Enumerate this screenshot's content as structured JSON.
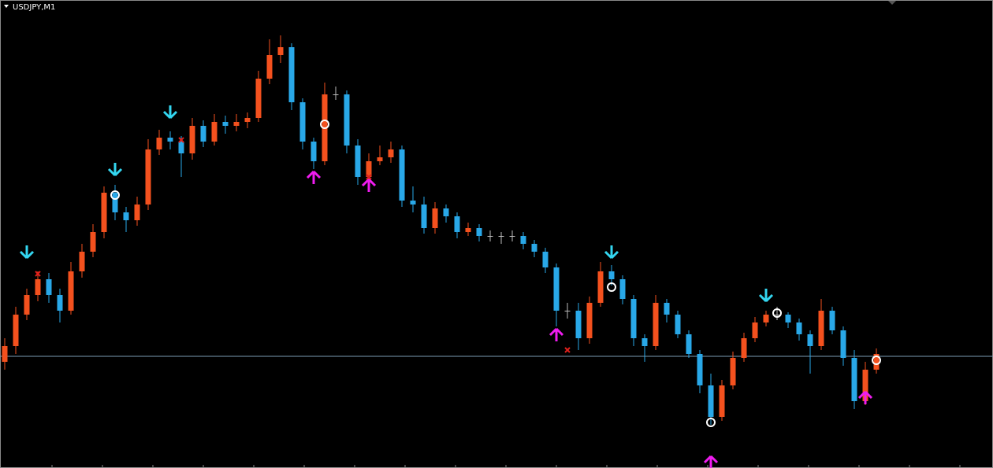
{
  "chart_data": {
    "type": "candlestick",
    "title": "USDJPY,M1",
    "ylim": [
      0,
      595
    ],
    "up_color": "#f4511e",
    "down_color": "#29a8e8",
    "open": [
      135,
      155,
      195,
      220,
      240,
      220,
      200,
      250,
      275,
      300,
      350,
      325,
      315,
      335,
      405,
      420,
      415,
      400,
      435,
      415,
      440,
      435,
      440,
      445,
      495,
      525,
      535,
      465,
      415,
      390,
      475,
      475,
      410,
      370,
      390,
      395,
      405,
      340,
      335,
      305,
      330,
      320,
      300,
      305,
      295,
      295,
      295,
      295,
      285,
      275,
      255,
      200,
      200,
      165,
      210,
      250,
      240,
      215,
      165,
      155,
      210,
      195,
      170,
      145,
      105,
      65,
      105,
      140,
      165,
      185,
      195,
      195,
      185,
      170,
      155,
      200,
      175,
      140,
      85,
      125
    ],
    "high": [
      165,
      205,
      228,
      250,
      248,
      228,
      262,
      285,
      310,
      358,
      360,
      332,
      345,
      418,
      430,
      428,
      422,
      445,
      442,
      450,
      448,
      450,
      452,
      505,
      545,
      550,
      540,
      470,
      420,
      490,
      485,
      480,
      418,
      400,
      410,
      415,
      410,
      358,
      345,
      338,
      335,
      325,
      312,
      310,
      302,
      300,
      302,
      300,
      290,
      280,
      260,
      210,
      210,
      218,
      262,
      258,
      245,
      220,
      170,
      220,
      215,
      200,
      175,
      150,
      120,
      112,
      148,
      172,
      192,
      200,
      205,
      198,
      190,
      175,
      215,
      205,
      180,
      150,
      135,
      152
    ],
    "low": [
      125,
      145,
      188,
      212,
      210,
      185,
      195,
      242,
      268,
      292,
      315,
      300,
      308,
      328,
      398,
      405,
      370,
      392,
      408,
      410,
      425,
      428,
      432,
      440,
      488,
      515,
      455,
      405,
      380,
      385,
      468,
      400,
      360,
      362,
      385,
      388,
      332,
      325,
      298,
      298,
      312,
      292,
      295,
      288,
      288,
      285,
      288,
      278,
      268,
      248,
      180,
      190,
      150,
      158,
      205,
      232,
      208,
      155,
      135,
      150,
      185,
      165,
      140,
      95,
      55,
      60,
      100,
      135,
      160,
      180,
      188,
      178,
      162,
      120,
      150,
      170,
      130,
      75,
      80,
      120
    ],
    "close": [
      155,
      195,
      220,
      240,
      220,
      200,
      250,
      275,
      300,
      350,
      325,
      315,
      335,
      405,
      420,
      415,
      400,
      435,
      415,
      440,
      435,
      440,
      445,
      495,
      525,
      535,
      465,
      415,
      390,
      475,
      475,
      410,
      370,
      390,
      395,
      405,
      340,
      335,
      305,
      330,
      320,
      300,
      305,
      295,
      295,
      295,
      295,
      285,
      275,
      255,
      200,
      200,
      165,
      210,
      250,
      240,
      215,
      165,
      155,
      210,
      195,
      170,
      145,
      105,
      65,
      105,
      140,
      165,
      185,
      195,
      195,
      185,
      170,
      155,
      200,
      175,
      140,
      85,
      125,
      145
    ],
    "price_line": {
      "value": 142,
      "color": "#7d9bb5"
    },
    "markers": {
      "down_arrows": {
        "color": "#33d6f0",
        "x": [
          2,
          10,
          15,
          55,
          69
        ],
        "values": [
          267,
          372,
          445,
          267,
          212
        ]
      },
      "up_arrows": {
        "color": "#f01cf0",
        "x": [
          28,
          33,
          50,
          64,
          78
        ],
        "values": [
          377,
          367,
          177,
          15,
          97
        ]
      },
      "circles": {
        "color": "#ffffff",
        "x": [
          10,
          29,
          55,
          70,
          64,
          79
        ],
        "values": [
          347,
          437,
          230,
          197,
          58,
          137
        ]
      },
      "crosses": {
        "color": "#e0201c",
        "x": [
          3,
          16,
          33,
          51
        ],
        "values": [
          247,
          417,
          370,
          150
        ]
      }
    }
  }
}
